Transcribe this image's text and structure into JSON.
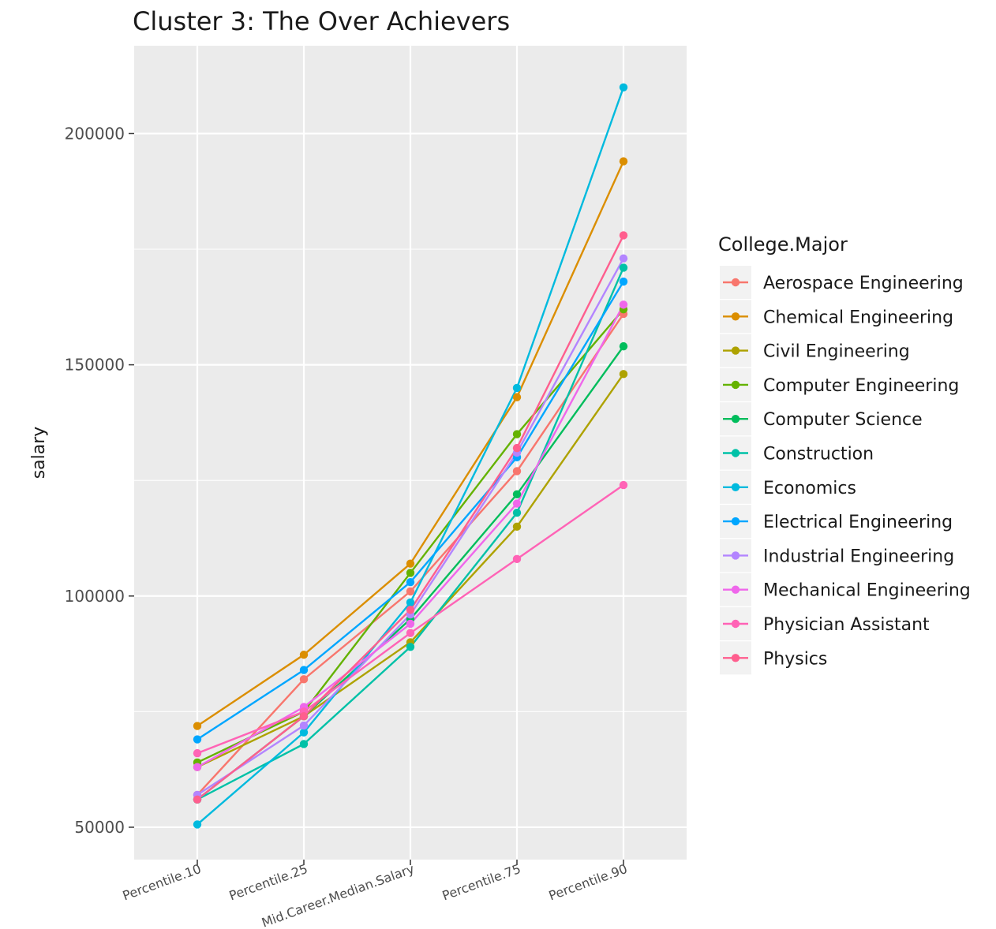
{
  "chart_data": {
    "type": "line",
    "title": "Cluster 3:  The Over Achievers",
    "xlabel": "",
    "ylabel": "salary",
    "categories": [
      "Percentile.10",
      "Percentile.25",
      "Mid.Career.Median.Salary",
      "Percentile.75",
      "Percentile.90"
    ],
    "y_ticks": [
      "50000",
      "100000",
      "150000",
      "200000"
    ],
    "y_tick_values": [
      50000,
      100000,
      150000,
      200000
    ],
    "ylim": [
      43000,
      219000
    ],
    "grid": true,
    "legend": {
      "title": "College.Major",
      "position": "right"
    },
    "series": [
      {
        "name": "Aerospace Engineering",
        "color": "#F8766D",
        "values": [
          57000,
          82000,
          101000,
          127000,
          161000
        ]
      },
      {
        "name": "Chemical Engineering",
        "color": "#DB8E00",
        "values": [
          71900,
          87300,
          107000,
          143000,
          194000
        ]
      },
      {
        "name": "Civil Engineering",
        "color": "#AEA200",
        "values": [
          63000,
          74000,
          90000,
          115000,
          148000
        ]
      },
      {
        "name": "Computer Engineering",
        "color": "#64B200",
        "values": [
          64000,
          75000,
          105000,
          135000,
          162000
        ]
      },
      {
        "name": "Computer Science",
        "color": "#00BD5C",
        "values": [
          56000,
          74000,
          95000,
          122000,
          154000
        ]
      },
      {
        "name": "Construction",
        "color": "#00C1A7",
        "values": [
          56000,
          68000,
          89000,
          118000,
          171000
        ]
      },
      {
        "name": "Economics",
        "color": "#00BADE",
        "values": [
          50600,
          70500,
          98600,
          145000,
          210000
        ]
      },
      {
        "name": "Electrical Engineering",
        "color": "#00A6FF",
        "values": [
          69000,
          84000,
          103000,
          130000,
          168000
        ]
      },
      {
        "name": "Industrial Engineering",
        "color": "#B385FF",
        "values": [
          57000,
          72000,
          96000,
          131000,
          173000
        ]
      },
      {
        "name": "Mechanical Engineering",
        "color": "#EF67EB",
        "values": [
          63000,
          76000,
          94000,
          120000,
          163000
        ]
      },
      {
        "name": "Physician Assistant",
        "color": "#FF63B6",
        "values": [
          66000,
          75000,
          92000,
          108000,
          124000
        ]
      },
      {
        "name": "Physics",
        "color": "#FF5E8E",
        "values": [
          56000,
          74000,
          97000,
          132000,
          178000
        ]
      }
    ]
  }
}
